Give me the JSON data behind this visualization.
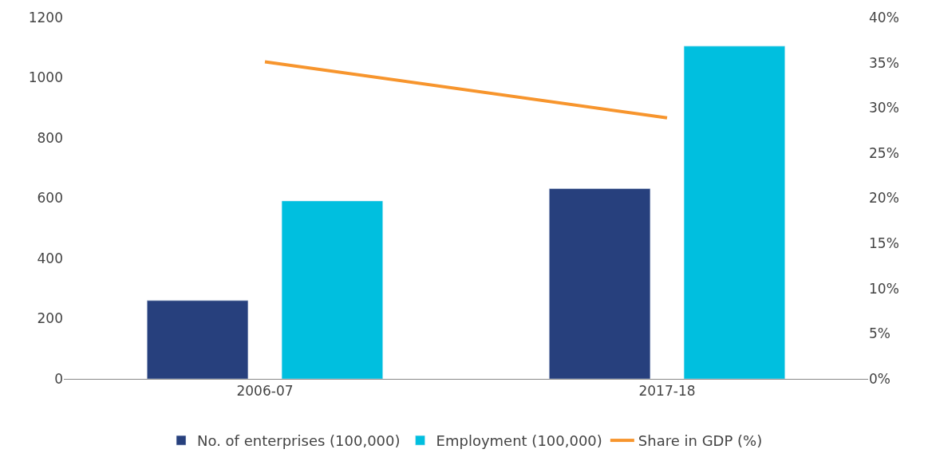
{
  "chart_data": {
    "type": "bar",
    "categories": [
      "2006-07",
      "2017-18"
    ],
    "series": [
      {
        "name": "No. of enterprises (100,000)",
        "color": "#27407d",
        "values": [
          260,
          632
        ]
      },
      {
        "name": "Employment (100,000)",
        "color": "#00bfdf",
        "values": [
          591,
          1105
        ]
      },
      {
        "name": "Share in GDP (%)",
        "color": "#f7952d",
        "type": "line",
        "axis": "y2",
        "values": [
          35.1,
          28.9
        ],
        "marker": "none"
      }
    ],
    "ylim": [
      0,
      1200
    ],
    "yticks": [
      0,
      200,
      400,
      600,
      800,
      1000,
      1200
    ],
    "y2lim": [
      0,
      40
    ],
    "y2ticks": [
      {
        "value": 0,
        "label": "0%"
      },
      {
        "value": 5,
        "label": "5%"
      },
      {
        "value": 10,
        "label": "10%"
      },
      {
        "value": 15,
        "label": "15%"
      },
      {
        "value": 20,
        "label": "20%"
      },
      {
        "value": 25,
        "label": "25%"
      },
      {
        "value": 30,
        "label": "30%"
      },
      {
        "value": 35,
        "label": "35%"
      },
      {
        "value": 40,
        "label": "40%"
      }
    ],
    "legend": "bottom"
  }
}
